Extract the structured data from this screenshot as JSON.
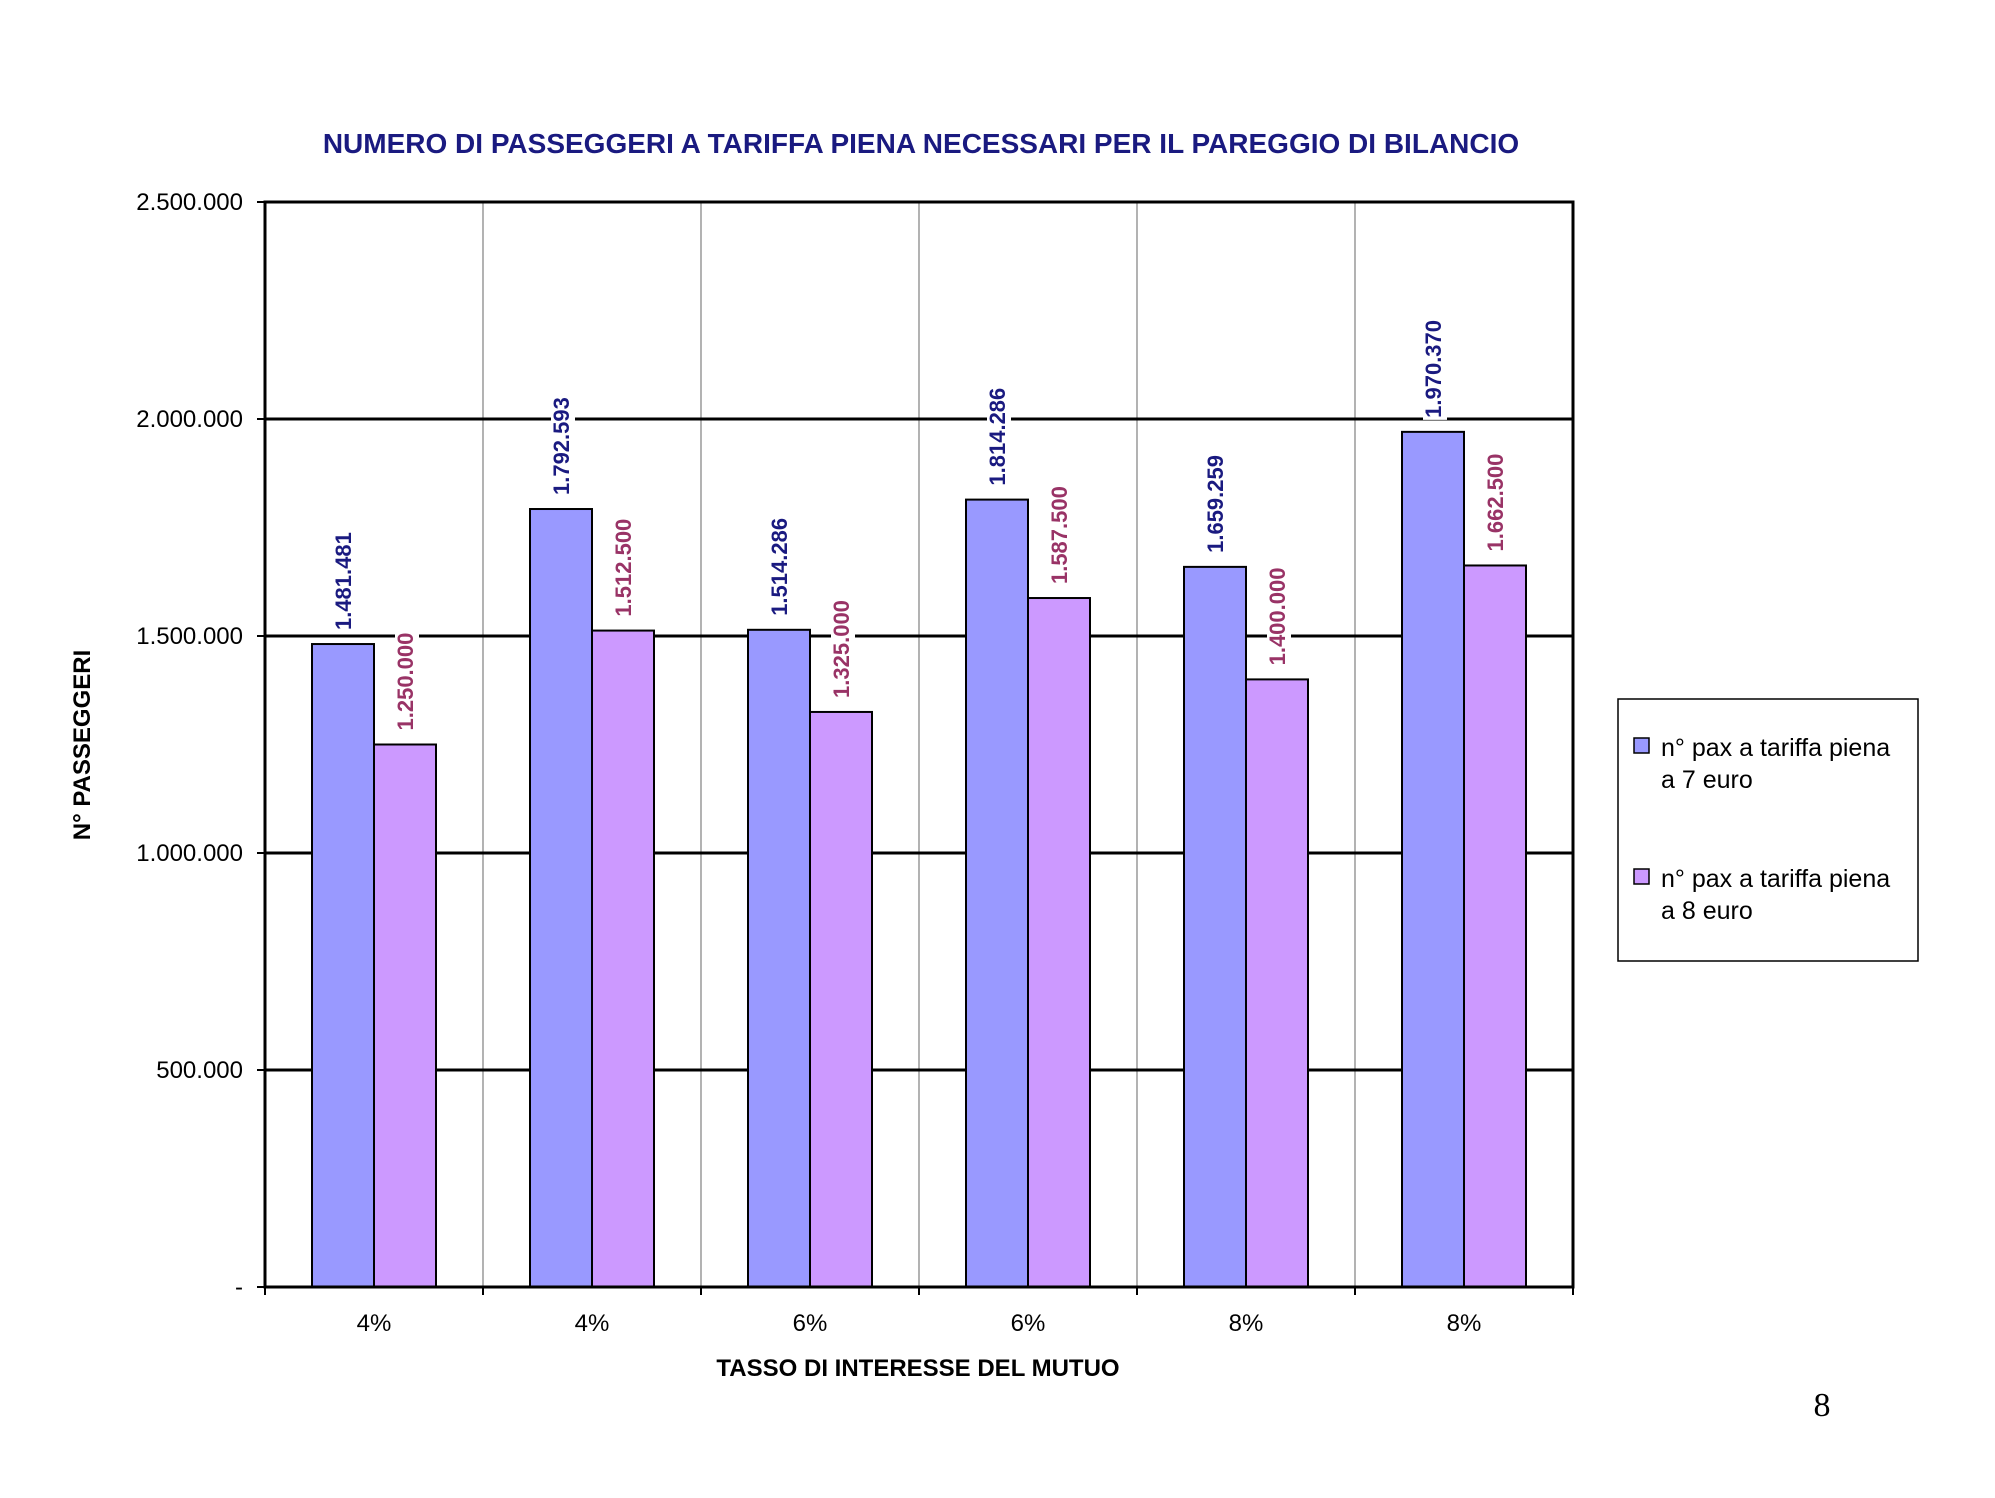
{
  "page": {
    "number": "8"
  },
  "chart_data": {
    "type": "bar",
    "title": "NUMERO DI PASSEGGERI A TARIFFA PIENA NECESSARI PER IL PAREGGIO DI BILANCIO",
    "xlabel": "TASSO DI INTERESSE DEL MUTUO",
    "ylabel": "N° PASSEGGERI",
    "categories": [
      "4%",
      "4%",
      "6%",
      "6%",
      "8%",
      "8%"
    ],
    "ylim": [
      0,
      2500000
    ],
    "yticks": [
      0,
      500000,
      1000000,
      1500000,
      2000000,
      2500000
    ],
    "ytick_labels": [
      "-",
      "500.000",
      "1.000.000",
      "1.500.000",
      "2.000.000",
      "2.500.000"
    ],
    "grid": "horizontal major gridlines",
    "legend_position": "right",
    "series": [
      {
        "name": "n° pax a tariffa piena a 7 euro",
        "legend_lines": [
          "n° pax a tariffa piena",
          "a 7 euro"
        ],
        "color": "#9999ff",
        "label_color": "#1a1a80",
        "values": [
          1481481,
          1792593,
          1514286,
          1814286,
          1659259,
          1970370
        ],
        "labels": [
          "1.481.481",
          "1.792.593",
          "1.514.286",
          "1.814.286",
          "1.659.259",
          "1.970.370"
        ]
      },
      {
        "name": "n° pax a tariffa piena a 8 euro",
        "legend_lines": [
          "n° pax a tariffa piena",
          "a 8 euro"
        ],
        "color": "#cc99ff",
        "label_color": "#993366",
        "values": [
          1250000,
          1512500,
          1325000,
          1587500,
          1400000,
          1662500
        ],
        "labels": [
          "1.250.000",
          "1.512.500",
          "1.325.000",
          "1.587.500",
          "1.400.000",
          "1.662.500"
        ]
      }
    ]
  }
}
